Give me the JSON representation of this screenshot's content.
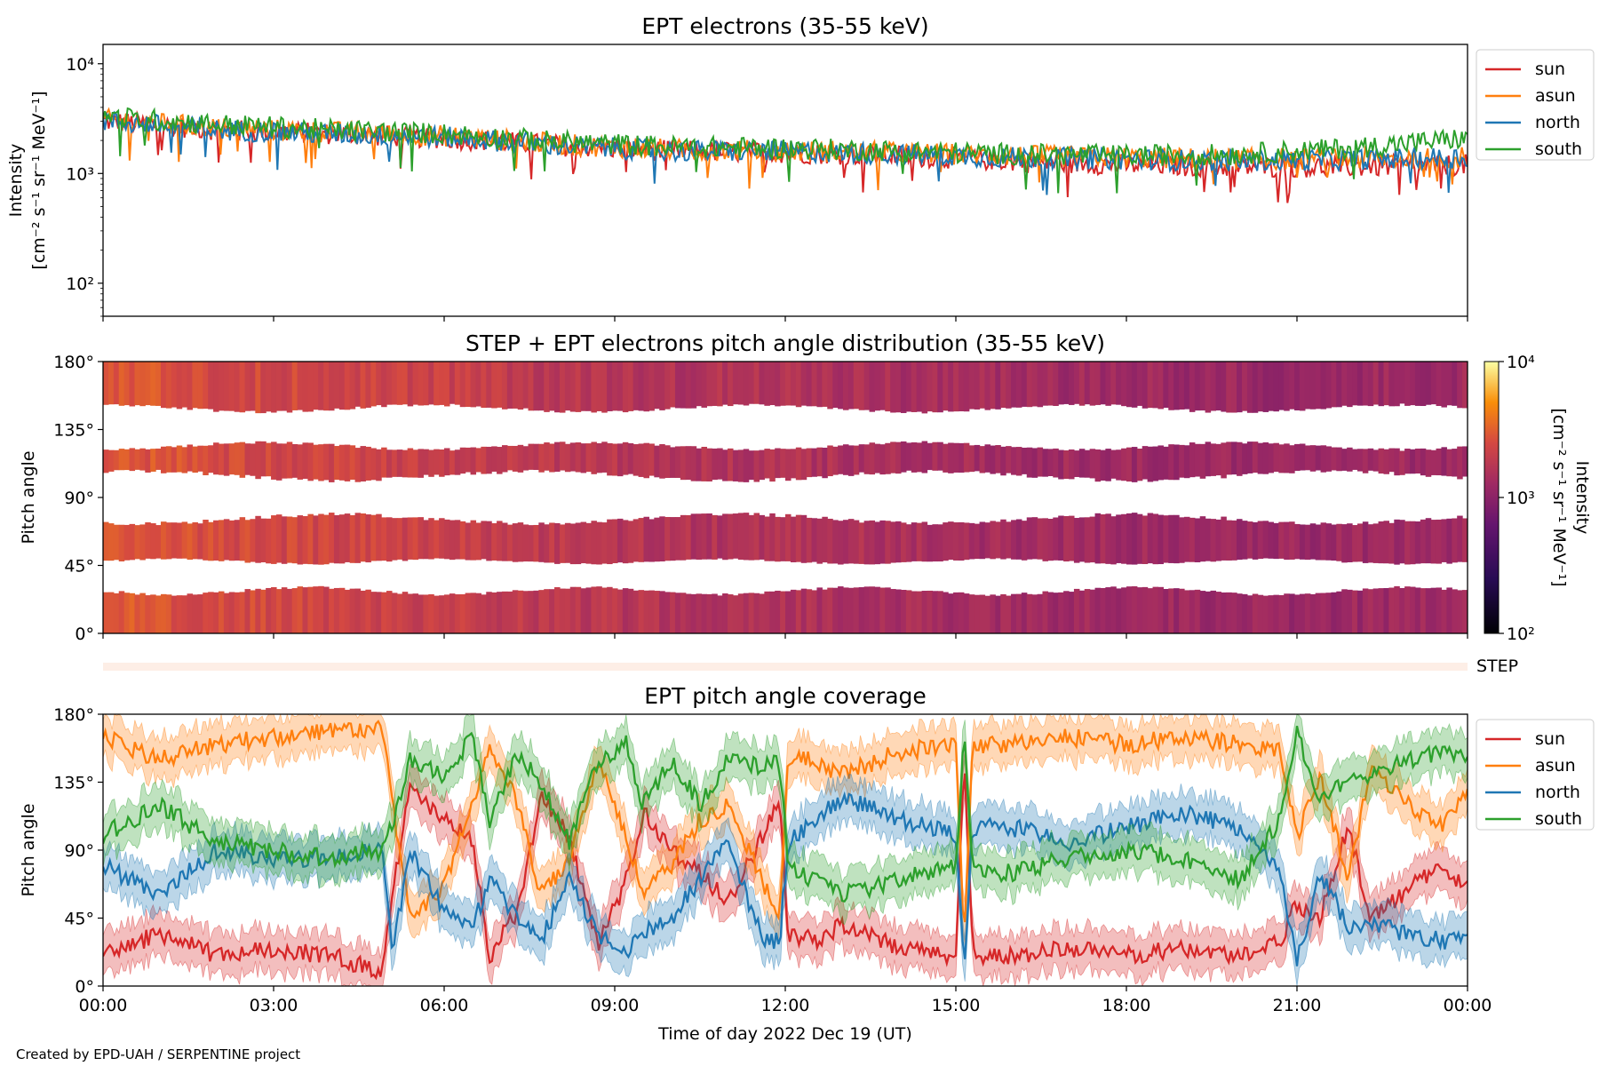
{
  "chart_data": [
    {
      "type": "line",
      "title": "EPT electrons (35-55 keV)",
      "ylabel_line1": "Intensity",
      "ylabel_line2": "[cm⁻² s⁻¹ sr⁻¹ MeV⁻¹]",
      "yscale": "log",
      "ylim": [
        50,
        15000
      ],
      "yticks": [
        "10²",
        "10³",
        "10⁴"
      ],
      "xlim": [
        "2022-12-19 00:00",
        "2022-12-20 00:00"
      ],
      "legend": "outside-right",
      "series": [
        {
          "name": "sun",
          "color": "#d62728",
          "x_hours": [
            0,
            2,
            4,
            6,
            8,
            10,
            12,
            14,
            16,
            18,
            20,
            22,
            24
          ],
          "values": [
            3000,
            2500,
            2300,
            2100,
            1800,
            1600,
            1550,
            1450,
            1300,
            1200,
            1150,
            1150,
            1200
          ]
        },
        {
          "name": "asun",
          "color": "#ff7f0e",
          "x_hours": [
            0,
            2,
            4,
            6,
            8,
            10,
            12,
            14,
            16,
            18,
            20,
            22,
            24
          ],
          "values": [
            3100,
            2600,
            2400,
            2200,
            1850,
            1650,
            1600,
            1550,
            1450,
            1400,
            1350,
            1350,
            1400
          ]
        },
        {
          "name": "north",
          "color": "#1f77b4",
          "x_hours": [
            0,
            2,
            4,
            6,
            8,
            10,
            12,
            14,
            16,
            18,
            20,
            22,
            24
          ],
          "values": [
            3000,
            2500,
            2300,
            2150,
            1800,
            1600,
            1600,
            1500,
            1400,
            1350,
            1300,
            1350,
            1400
          ]
        },
        {
          "name": "south",
          "color": "#2ca02c",
          "x_hours": [
            0,
            2,
            4,
            6,
            8,
            10,
            12,
            14,
            16,
            18,
            20,
            22,
            24
          ],
          "values": [
            3300,
            2800,
            2500,
            2300,
            1950,
            1750,
            1700,
            1600,
            1500,
            1450,
            1500,
            1700,
            2100
          ]
        }
      ]
    },
    {
      "type": "heatmap",
      "title": "STEP + EPT electrons pitch angle distribution (35-55 keV)",
      "ylabel": "Pitch angle",
      "ylim": [
        0,
        180
      ],
      "yticks": [
        "0°",
        "45°",
        "90°",
        "135°",
        "180°"
      ],
      "colorbar": {
        "label_line1": "Intensity",
        "label_line2": "[cm⁻² s⁻¹ sr⁻¹ MeV⁻¹]",
        "scale": "log",
        "range": [
          100,
          10000
        ],
        "ticks": [
          "10²",
          "10³",
          "10⁴"
        ],
        "cmap": "inferno"
      },
      "x_hours": [
        0,
        2,
        4,
        6,
        8,
        10,
        12,
        14,
        16,
        18,
        20,
        22,
        24
      ],
      "intensity": [
        3000,
        2500,
        2300,
        2100,
        1800,
        1600,
        1550,
        1450,
        1300,
        1250,
        1200,
        1200,
        1250
      ]
    },
    {
      "type": "line",
      "title": "EPT pitch angle coverage",
      "ylabel": "Pitch angle",
      "ylim": [
        0,
        180
      ],
      "yticks": [
        "0°",
        "45°",
        "90°",
        "135°",
        "180°"
      ],
      "xlabel": "Time of day 2022 Dec 19 (UT)",
      "xticks": [
        "00:00",
        "03:00",
        "06:00",
        "09:00",
        "12:00",
        "15:00",
        "18:00",
        "21:00",
        "00:00"
      ],
      "legend": "outside-right",
      "step_strip_label": "STEP",
      "series": [
        {
          "name": "sun",
          "color": "#d62728",
          "points": [
            [
              0,
              20
            ],
            [
              1,
              35
            ],
            [
              2,
              20
            ],
            [
              3,
              25
            ],
            [
              4,
              20
            ],
            [
              4.9,
              10
            ],
            [
              5.1,
              65
            ],
            [
              5.4,
              130
            ],
            [
              6,
              110
            ],
            [
              6.5,
              95
            ],
            [
              6.8,
              20
            ],
            [
              7.3,
              50
            ],
            [
              7.7,
              125
            ],
            [
              8.2,
              100
            ],
            [
              8.7,
              25
            ],
            [
              9.2,
              70
            ],
            [
              9.5,
              115
            ],
            [
              10,
              90
            ],
            [
              10.5,
              75
            ],
            [
              11,
              55
            ],
            [
              11.6,
              100
            ],
            [
              11.9,
              125
            ],
            [
              12.05,
              35
            ],
            [
              12.5,
              30
            ],
            [
              13,
              40
            ],
            [
              14,
              25
            ],
            [
              15,
              20
            ],
            [
              15.15,
              150
            ],
            [
              15.3,
              20
            ],
            [
              16,
              20
            ],
            [
              17,
              25
            ],
            [
              18,
              20
            ],
            [
              19,
              25
            ],
            [
              20,
              20
            ],
            [
              20.7,
              30
            ],
            [
              21,
              55
            ],
            [
              21.4,
              45
            ],
            [
              21.9,
              105
            ],
            [
              22.3,
              45
            ],
            [
              23,
              65
            ],
            [
              23.5,
              80
            ],
            [
              24,
              65
            ]
          ]
        },
        {
          "name": "asun",
          "color": "#ff7f0e",
          "points": [
            [
              0,
              165
            ],
            [
              1,
              150
            ],
            [
              2,
              160
            ],
            [
              3,
              165
            ],
            [
              4,
              170
            ],
            [
              4.9,
              170
            ],
            [
              5.1,
              120
            ],
            [
              5.4,
              45
            ],
            [
              6,
              65
            ],
            [
              6.5,
              120
            ],
            [
              6.8,
              160
            ],
            [
              7.3,
              120
            ],
            [
              7.7,
              60
            ],
            [
              8.2,
              85
            ],
            [
              8.7,
              150
            ],
            [
              9.2,
              100
            ],
            [
              9.5,
              60
            ],
            [
              10,
              80
            ],
            [
              10.5,
              110
            ],
            [
              11,
              120
            ],
            [
              11.6,
              70
            ],
            [
              11.9,
              45
            ],
            [
              12.05,
              150
            ],
            [
              12.5,
              150
            ],
            [
              13,
              140
            ],
            [
              14,
              155
            ],
            [
              15,
              160
            ],
            [
              15.15,
              30
            ],
            [
              15.3,
              160
            ],
            [
              16,
              160
            ],
            [
              17,
              165
            ],
            [
              18,
              160
            ],
            [
              19,
              165
            ],
            [
              20,
              160
            ],
            [
              20.7,
              155
            ],
            [
              21,
              100
            ],
            [
              21.4,
              140
            ],
            [
              21.9,
              70
            ],
            [
              22.3,
              145
            ],
            [
              23,
              120
            ],
            [
              23.5,
              105
            ],
            [
              24,
              130
            ]
          ]
        },
        {
          "name": "north",
          "color": "#1f77b4",
          "points": [
            [
              0,
              80
            ],
            [
              1,
              60
            ],
            [
              2,
              90
            ],
            [
              3,
              85
            ],
            [
              4,
              85
            ],
            [
              4.9,
              90
            ],
            [
              5.1,
              25
            ],
            [
              5.4,
              90
            ],
            [
              6,
              50
            ],
            [
              6.5,
              40
            ],
            [
              6.8,
              70
            ],
            [
              7.3,
              45
            ],
            [
              7.7,
              30
            ],
            [
              8.2,
              70
            ],
            [
              8.7,
              35
            ],
            [
              9.2,
              20
            ],
            [
              9.5,
              35
            ],
            [
              10,
              45
            ],
            [
              10.5,
              70
            ],
            [
              11,
              95
            ],
            [
              11.6,
              30
            ],
            [
              11.9,
              30
            ],
            [
              12.05,
              95
            ],
            [
              12.5,
              110
            ],
            [
              13,
              125
            ],
            [
              14,
              110
            ],
            [
              15,
              100
            ],
            [
              15.15,
              10
            ],
            [
              15.3,
              105
            ],
            [
              16,
              105
            ],
            [
              17,
              95
            ],
            [
              18,
              105
            ],
            [
              19,
              115
            ],
            [
              20,
              105
            ],
            [
              20.7,
              75
            ],
            [
              21,
              15
            ],
            [
              21.4,
              75
            ],
            [
              21.9,
              40
            ],
            [
              22.3,
              40
            ],
            [
              23,
              35
            ],
            [
              23.5,
              30
            ],
            [
              24,
              30
            ]
          ]
        },
        {
          "name": "south",
          "color": "#2ca02c",
          "points": [
            [
              0,
              100
            ],
            [
              1,
              120
            ],
            [
              2,
              95
            ],
            [
              3,
              90
            ],
            [
              4,
              85
            ],
            [
              4.9,
              90
            ],
            [
              5.1,
              110
            ],
            [
              5.4,
              150
            ],
            [
              6,
              140
            ],
            [
              6.5,
              165
            ],
            [
              6.8,
              110
            ],
            [
              7.3,
              155
            ],
            [
              7.7,
              135
            ],
            [
              8.2,
              95
            ],
            [
              8.7,
              150
            ],
            [
              9.2,
              160
            ],
            [
              9.5,
              120
            ],
            [
              10,
              150
            ],
            [
              10.5,
              120
            ],
            [
              11,
              150
            ],
            [
              11.6,
              145
            ],
            [
              11.9,
              150
            ],
            [
              12.05,
              80
            ],
            [
              12.5,
              70
            ],
            [
              13,
              60
            ],
            [
              14,
              70
            ],
            [
              15,
              80
            ],
            [
              15.15,
              170
            ],
            [
              15.3,
              75
            ],
            [
              16,
              75
            ],
            [
              17,
              85
            ],
            [
              18,
              90
            ],
            [
              19,
              85
            ],
            [
              20,
              70
            ],
            [
              20.7,
              110
            ],
            [
              21,
              170
            ],
            [
              21.4,
              120
            ],
            [
              21.9,
              140
            ],
            [
              22.3,
              140
            ],
            [
              23,
              150
            ],
            [
              23.5,
              155
            ],
            [
              24,
              150
            ]
          ]
        }
      ]
    }
  ],
  "credit": "Created by EPD-UAH / SERPENTINE project"
}
